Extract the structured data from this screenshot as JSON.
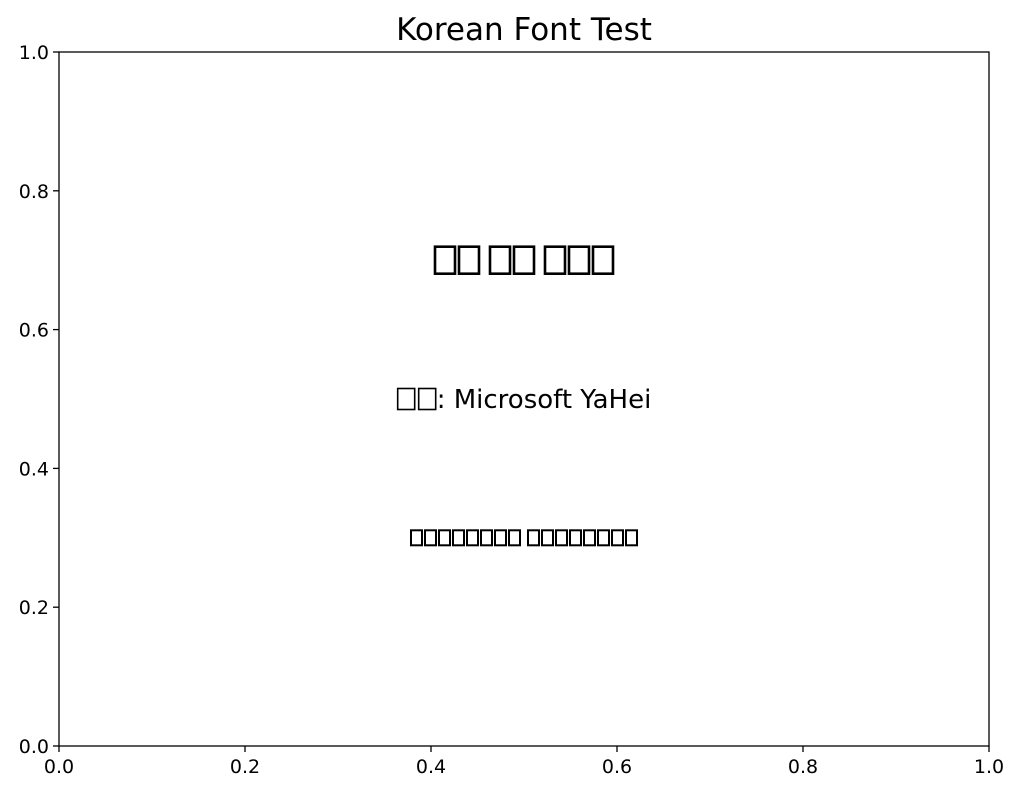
{
  "chart_data": {
    "type": "scatter",
    "title": "Korean Font Test",
    "xlabel": "",
    "ylabel": "",
    "xlim": [
      0.0,
      1.0
    ],
    "ylim": [
      0.0,
      1.0
    ],
    "grid": false,
    "x_ticks": [
      0.0,
      0.2,
      0.4,
      0.6,
      0.8,
      1.0
    ],
    "y_ticks": [
      0.0,
      0.2,
      0.4,
      0.6,
      0.8,
      1.0
    ],
    "x_tick_labels": [
      "0.0",
      "0.2",
      "0.4",
      "0.6",
      "0.8",
      "1.0"
    ],
    "y_tick_labels": [
      "0.0",
      "0.2",
      "0.4",
      "0.6",
      "0.8",
      "1.0"
    ],
    "annotations": [
      {
        "x": 0.5,
        "y": 0.7,
        "missing_glyph_groups": [
          2,
          2,
          3
        ],
        "suffix": "",
        "style": "large-bold"
      },
      {
        "x": 0.5,
        "y": 0.5,
        "missing_glyph_groups": [
          2
        ],
        "suffix": ": Microsoft YaHei",
        "style": "medium"
      },
      {
        "x": 0.5,
        "y": 0.3,
        "missing_glyph_groups": [
          8,
          8
        ],
        "suffix": "",
        "style": "small-bold"
      }
    ],
    "colors": {
      "text": "#000000",
      "axes": "#000000",
      "background": "#ffffff"
    }
  }
}
